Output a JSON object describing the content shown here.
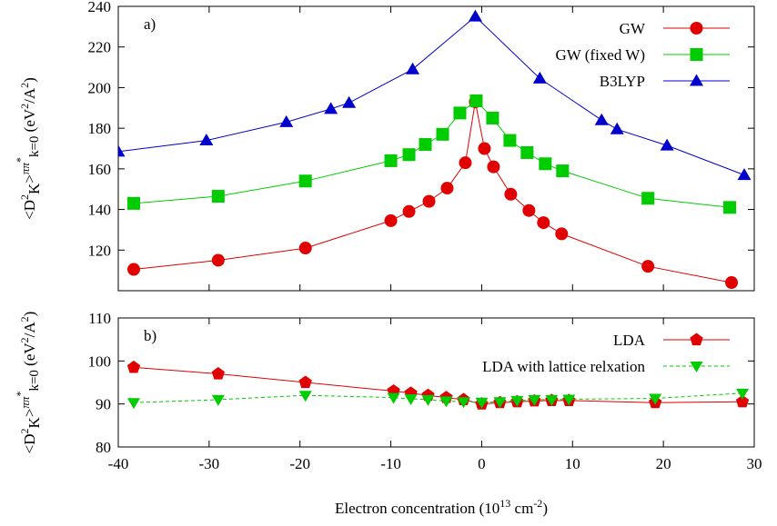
{
  "chart_data": [
    {
      "panel_label": "a)",
      "type": "line",
      "xlabel": "",
      "ylabel": "<D2K>ππ*k=0 (eV2/A2)",
      "xlim": [
        -40,
        30
      ],
      "ylim": [
        100,
        240
      ],
      "yticks": [
        120,
        140,
        160,
        180,
        200,
        220,
        240
      ],
      "xticks": [
        -40,
        -30,
        -20,
        -10,
        0,
        10,
        20,
        30
      ],
      "grid": false,
      "legend_position": "top-right",
      "series": [
        {
          "name": "GW",
          "color": "#e00000",
          "marker": "circle",
          "x": [
            -38.3,
            -29,
            -19.4,
            -10,
            -8,
            -5.8,
            -3.8,
            -1.8,
            -0.7,
            0.3,
            1.3,
            3.2,
            5.2,
            6.8,
            8.8,
            18.3,
            27.5
          ],
          "y": [
            110.5,
            115,
            121,
            134.5,
            139,
            144,
            150.5,
            163,
            193,
            170,
            161,
            147.5,
            139.5,
            133.5,
            128,
            112,
            104
          ]
        },
        {
          "name": "GW (fixed W)",
          "color": "#00cc00",
          "marker": "square",
          "x": [
            -38.3,
            -29,
            -19.4,
            -10,
            -8,
            -6.2,
            -4.3,
            -2.4,
            -0.6,
            1.2,
            3.1,
            5,
            7,
            8.9,
            18.3,
            27.3
          ],
          "y": [
            143,
            146.5,
            154,
            164,
            167,
            172,
            177,
            187.5,
            193.5,
            185,
            174,
            168,
            162.5,
            159,
            145.5,
            141
          ]
        },
        {
          "name": "B3LYP",
          "color": "#0000cc",
          "marker": "triangle",
          "x": [
            -40,
            -30.3,
            -21.5,
            -16.6,
            -14.6,
            -7.6,
            -0.7,
            6.4,
            13.2,
            14.9,
            20.4,
            28.9
          ],
          "y": [
            168.5,
            174,
            183,
            189.5,
            192.5,
            209,
            235,
            204.5,
            184,
            179.5,
            171.5,
            157
          ]
        }
      ]
    },
    {
      "panel_label": "b)",
      "type": "line",
      "xlabel": "Electron concentration (1013 cm-2)",
      "ylabel": "<D2K>ππ*k=0 (eV2/A2)",
      "xlim": [
        -40,
        30
      ],
      "ylim": [
        80,
        110
      ],
      "yticks": [
        80,
        90,
        100,
        110
      ],
      "xticks": [
        -40,
        -30,
        -20,
        -10,
        0,
        10,
        20,
        30
      ],
      "xticklabels": [
        "-40",
        "-30",
        "-20",
        "-10",
        "0",
        "10",
        "20",
        "30"
      ],
      "grid": false,
      "legend_position": "top-right",
      "series": [
        {
          "name": "LDA",
          "color": "#e00000",
          "marker": "pentagon",
          "line": "solid",
          "x": [
            -38.3,
            -29,
            -19.4,
            -9.7,
            -7.8,
            -5.9,
            -3.9,
            -2,
            0,
            2,
            3.9,
            5.8,
            7.7,
            9.6,
            19.1,
            28.7
          ],
          "y": [
            98.5,
            97,
            95,
            93,
            92.5,
            92,
            91.5,
            91,
            90,
            90.3,
            90.5,
            90.7,
            90.8,
            90.8,
            90.3,
            90.5
          ]
        },
        {
          "name": "LDA with lattice relxation",
          "color": "#00cc00",
          "marker": "triangle-down",
          "line": "dashed",
          "x": [
            -38.3,
            -29,
            -19.4,
            -9.7,
            -7.8,
            -5.9,
            -3.9,
            -2,
            0,
            2,
            3.9,
            5.8,
            7.7,
            9.6,
            19.1,
            28.7
          ],
          "y": [
            90.3,
            91,
            92,
            91.5,
            91.2,
            91,
            90.7,
            90.5,
            90.4,
            90.5,
            90.8,
            91,
            91,
            91.1,
            91.3,
            92.5
          ]
        }
      ]
    }
  ]
}
